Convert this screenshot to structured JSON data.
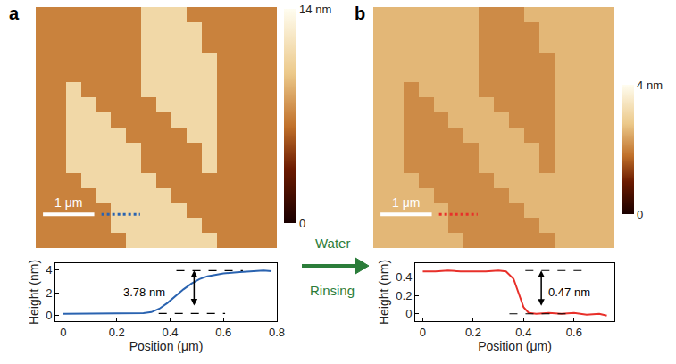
{
  "chart_data": [
    {
      "panel": "a",
      "type": "heatmap",
      "xlim": [
        0,
        4.7
      ],
      "ylim": [
        0,
        4.7
      ],
      "tick_labels": false,
      "zlim": [
        0,
        14
      ],
      "zticks": [
        0,
        {
          "value": 14,
          "label": "14 nm"
        }
      ],
      "scale_bar": {
        "length": 1,
        "label": "1 μm"
      },
      "z": [
        [
          7,
          7,
          7,
          7,
          7,
          7,
          7,
          11,
          11,
          11,
          7,
          7,
          7,
          7,
          7,
          7
        ],
        [
          7,
          7,
          7,
          7,
          7,
          7,
          7,
          11,
          11,
          11,
          11,
          7,
          7,
          7,
          7,
          7
        ],
        [
          7,
          7,
          7,
          7,
          7,
          7,
          7,
          11,
          11,
          11,
          11,
          7,
          7,
          7,
          7,
          7
        ],
        [
          7,
          7,
          7,
          7,
          7,
          7,
          7,
          11,
          11,
          11,
          11,
          11,
          7,
          7,
          7,
          7
        ],
        [
          7,
          7,
          7,
          7,
          7,
          7,
          7,
          11,
          11,
          11,
          11,
          11,
          7,
          7,
          7,
          7
        ],
        [
          7,
          7,
          11,
          7,
          7,
          7,
          7,
          11,
          11,
          11,
          11,
          11,
          7,
          7,
          7,
          7
        ],
        [
          7,
          7,
          11,
          11,
          7,
          7,
          7,
          7,
          11,
          11,
          11,
          11,
          7,
          7,
          7,
          7
        ],
        [
          7,
          7,
          11,
          11,
          11,
          7,
          7,
          7,
          7,
          11,
          11,
          11,
          7,
          7,
          7,
          7
        ],
        [
          7,
          7,
          11,
          11,
          11,
          11,
          7,
          7,
          7,
          7,
          11,
          11,
          7,
          7,
          7,
          7
        ],
        [
          7,
          7,
          11,
          11,
          11,
          11,
          11,
          7,
          7,
          7,
          7,
          11,
          7,
          7,
          7,
          7
        ],
        [
          7,
          7,
          11,
          11,
          11,
          11,
          11,
          7,
          7,
          7,
          7,
          11,
          7,
          7,
          7,
          7
        ],
        [
          7,
          7,
          7,
          11,
          11,
          11,
          11,
          11,
          7,
          7,
          7,
          7,
          7,
          7,
          7,
          7
        ],
        [
          7,
          7,
          7,
          7,
          11,
          11,
          11,
          11,
          11,
          7,
          7,
          7,
          7,
          7,
          7,
          7
        ],
        [
          7,
          7,
          7,
          7,
          7,
          11,
          11,
          11,
          11,
          11,
          7,
          7,
          7,
          7,
          7,
          7
        ],
        [
          7,
          7,
          7,
          7,
          7,
          11,
          11,
          11,
          11,
          11,
          11,
          7,
          7,
          7,
          7,
          7
        ],
        [
          7,
          7,
          7,
          7,
          7,
          7,
          11,
          11,
          11,
          11,
          11,
          11,
          7,
          7,
          7,
          7
        ]
      ]
    },
    {
      "type": "line",
      "xlabel": "Position (μm)",
      "ylabel": "Height (nm)",
      "x": [
        0,
        0.05,
        0.1,
        0.15,
        0.2,
        0.25,
        0.3,
        0.33,
        0.36,
        0.39,
        0.42,
        0.45,
        0.48,
        0.51,
        0.54,
        0.57,
        0.6,
        0.65,
        0.7,
        0.75,
        0.78
      ],
      "series": [
        {
          "color": "#2a63b0",
          "values": [
            0.15,
            0.15,
            0.15,
            0.15,
            0.16,
            0.17,
            0.2,
            0.3,
            0.6,
            1.1,
            1.7,
            2.3,
            2.8,
            3.2,
            3.45,
            3.6,
            3.7,
            3.8,
            3.88,
            3.95,
            3.9
          ]
        }
      ],
      "xlim": [
        -0.03,
        0.8
      ],
      "xticks": [
        0,
        0.2,
        0.4,
        0.6,
        0.8
      ],
      "ylim": [
        -0.5,
        4.6
      ],
      "yticks": [
        0,
        2,
        4
      ],
      "step": {
        "x": 0.49,
        "base": 0.17,
        "value": 3.78,
        "label": "3.78 nm"
      }
    },
    {
      "panel": "b",
      "type": "heatmap",
      "xlim": [
        0,
        4.7
      ],
      "ylim": [
        0,
        4.7
      ],
      "tick_labels": false,
      "zlim": [
        0,
        4
      ],
      "zticks": [
        0,
        {
          "value": 4,
          "label": "4 nm"
        }
      ],
      "scale_bar": {
        "length": 1,
        "label": "1 μm"
      },
      "z": [
        [
          2.6,
          2.6,
          2.6,
          2.6,
          2.6,
          2.6,
          2.6,
          2.1,
          2.1,
          2.1,
          2.6,
          2.6,
          2.6,
          2.6,
          2.6,
          2.6
        ],
        [
          2.6,
          2.6,
          2.6,
          2.6,
          2.6,
          2.6,
          2.6,
          2.1,
          2.1,
          2.1,
          2.1,
          2.6,
          2.6,
          2.6,
          2.6,
          2.6
        ],
        [
          2.6,
          2.6,
          2.6,
          2.6,
          2.6,
          2.6,
          2.6,
          2.1,
          2.1,
          2.1,
          2.1,
          2.6,
          2.6,
          2.6,
          2.6,
          2.6
        ],
        [
          2.6,
          2.6,
          2.6,
          2.6,
          2.6,
          2.6,
          2.6,
          2.1,
          2.1,
          2.1,
          2.1,
          2.1,
          2.6,
          2.6,
          2.6,
          2.6
        ],
        [
          2.6,
          2.6,
          2.6,
          2.6,
          2.6,
          2.6,
          2.6,
          2.1,
          2.1,
          2.1,
          2.1,
          2.1,
          2.6,
          2.6,
          2.6,
          2.6
        ],
        [
          2.6,
          2.6,
          2.1,
          2.6,
          2.6,
          2.6,
          2.6,
          2.1,
          2.1,
          2.1,
          2.1,
          2.1,
          2.6,
          2.6,
          2.6,
          2.6
        ],
        [
          2.6,
          2.6,
          2.1,
          2.1,
          2.6,
          2.6,
          2.6,
          2.6,
          2.1,
          2.1,
          2.1,
          2.1,
          2.6,
          2.6,
          2.6,
          2.6
        ],
        [
          2.6,
          2.6,
          2.1,
          2.1,
          2.1,
          2.6,
          2.6,
          2.6,
          2.6,
          2.1,
          2.1,
          2.1,
          2.6,
          2.6,
          2.6,
          2.6
        ],
        [
          2.6,
          2.6,
          2.1,
          2.1,
          2.1,
          2.1,
          2.6,
          2.6,
          2.6,
          2.6,
          2.1,
          2.1,
          2.6,
          2.6,
          2.6,
          2.6
        ],
        [
          2.6,
          2.6,
          2.1,
          2.1,
          2.1,
          2.1,
          2.1,
          2.6,
          2.6,
          2.6,
          2.6,
          2.1,
          2.6,
          2.6,
          2.6,
          2.6
        ],
        [
          2.6,
          2.6,
          2.1,
          2.1,
          2.1,
          2.1,
          2.1,
          2.6,
          2.6,
          2.6,
          2.6,
          2.1,
          2.6,
          2.6,
          2.6,
          2.6
        ],
        [
          2.6,
          2.6,
          2.6,
          2.1,
          2.1,
          2.1,
          2.1,
          2.1,
          2.6,
          2.6,
          2.6,
          2.6,
          2.6,
          2.6,
          2.6,
          2.6
        ],
        [
          2.6,
          2.6,
          2.6,
          2.6,
          2.1,
          2.1,
          2.1,
          2.1,
          2.1,
          2.6,
          2.6,
          2.6,
          2.6,
          2.6,
          2.6,
          2.6
        ],
        [
          2.6,
          2.6,
          2.6,
          2.6,
          2.6,
          2.1,
          2.1,
          2.1,
          2.1,
          2.1,
          2.6,
          2.6,
          2.6,
          2.6,
          2.6,
          2.6
        ],
        [
          2.6,
          2.6,
          2.6,
          2.6,
          2.6,
          2.1,
          2.1,
          2.1,
          2.1,
          2.1,
          2.1,
          2.6,
          2.6,
          2.6,
          2.6,
          2.6
        ],
        [
          2.6,
          2.6,
          2.6,
          2.6,
          2.6,
          2.6,
          2.1,
          2.1,
          2.1,
          2.1,
          2.1,
          2.1,
          2.6,
          2.6,
          2.6,
          2.6
        ]
      ]
    },
    {
      "type": "line",
      "xlabel": "Position (μm)",
      "ylabel": "Height (nm)",
      "x": [
        0,
        0.05,
        0.1,
        0.15,
        0.2,
        0.25,
        0.3,
        0.33,
        0.36,
        0.38,
        0.4,
        0.42,
        0.45,
        0.5,
        0.55,
        0.6,
        0.65,
        0.7,
        0.73
      ],
      "series": [
        {
          "color": "#e8302a",
          "values": [
            0.46,
            0.46,
            0.47,
            0.46,
            0.46,
            0.46,
            0.47,
            0.46,
            0.38,
            0.22,
            0.07,
            0.01,
            0.0,
            0.01,
            0.0,
            0.01,
            -0.01,
            0.0,
            -0.02
          ]
        }
      ],
      "xlim": [
        -0.03,
        0.76
      ],
      "xticks": [
        0,
        0.2,
        0.4,
        0.6
      ],
      "ylim": [
        -0.08,
        0.55
      ],
      "yticks": [
        0,
        0.2,
        0.4
      ],
      "step": {
        "x": 0.47,
        "base": 0,
        "value": 0.47,
        "label": "0.47 nm"
      }
    }
  ],
  "arrow_label": [
    "Water",
    "Rinsing"
  ]
}
